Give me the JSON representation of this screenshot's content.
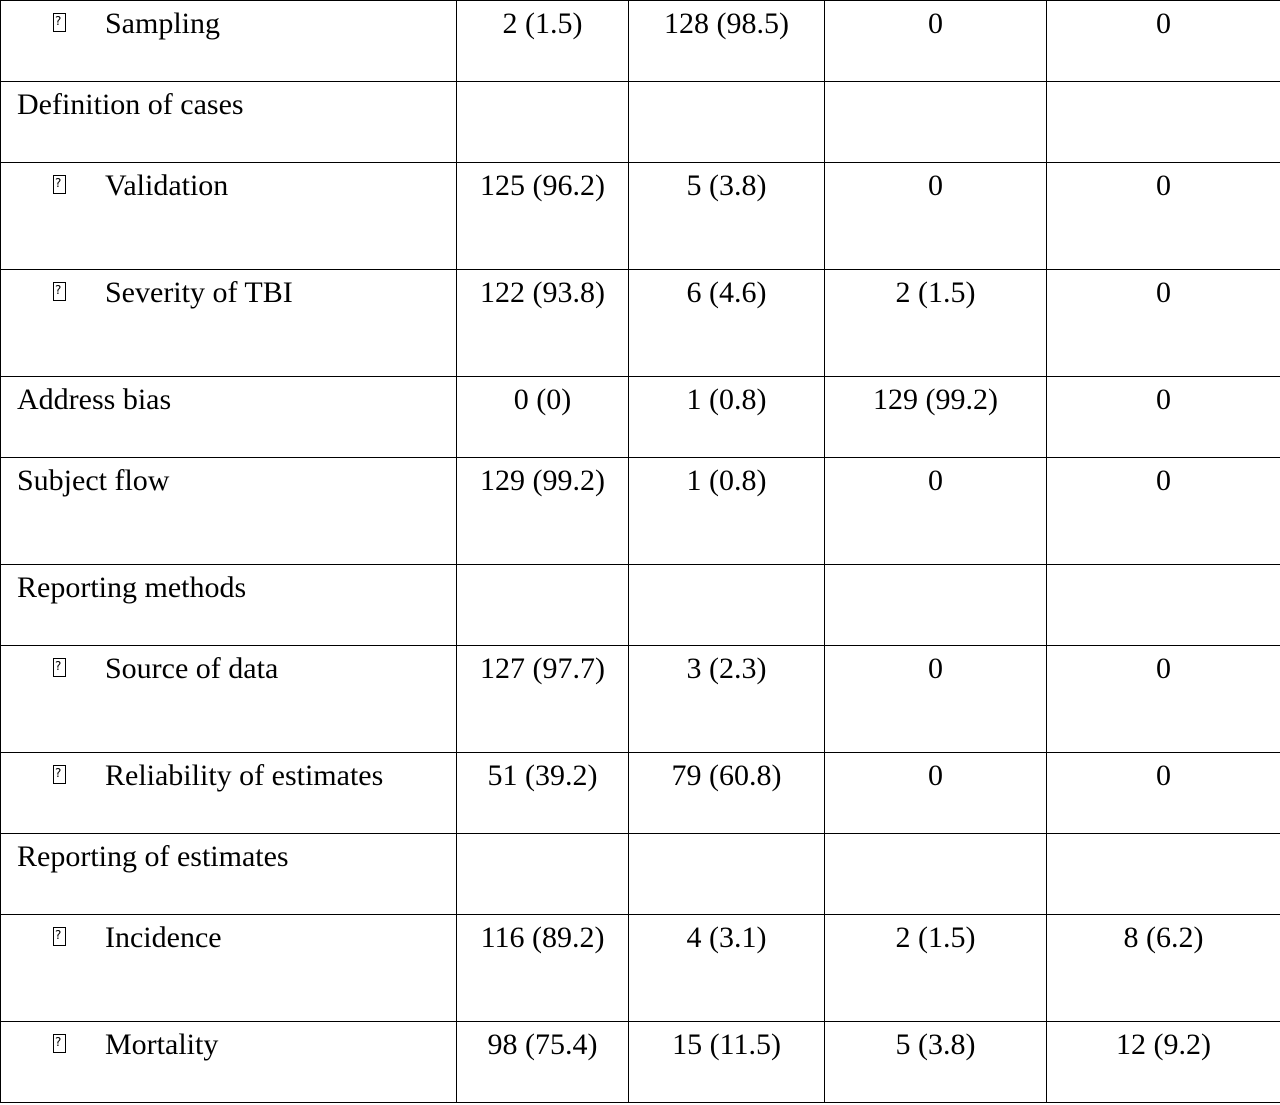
{
  "table": {
    "rows": [
      {
        "label": "Sampling",
        "sub": true,
        "cells": [
          "2 (1.5)",
          "128 (98.5)",
          "0",
          "0"
        ],
        "tall": false
      },
      {
        "label": "Definition of cases",
        "sub": false,
        "cells": [
          "",
          "",
          "",
          ""
        ],
        "tall": false
      },
      {
        "label": "Validation",
        "sub": true,
        "cells": [
          "125 (96.2)",
          "5 (3.8)",
          "0",
          "0"
        ],
        "tall": true
      },
      {
        "label": "Severity of TBI",
        "sub": true,
        "cells": [
          "122 (93.8)",
          "6 (4.6)",
          "2 (1.5)",
          "0"
        ],
        "tall": true
      },
      {
        "label": "Address bias",
        "sub": false,
        "cells": [
          "0 (0)",
          "1 (0.8)",
          "129 (99.2)",
          "0"
        ],
        "tall": false
      },
      {
        "label": "Subject flow",
        "sub": false,
        "cells": [
          "129 (99.2)",
          "1 (0.8)",
          "0",
          "0"
        ],
        "tall": true
      },
      {
        "label": "Reporting methods",
        "sub": false,
        "cells": [
          "",
          "",
          "",
          ""
        ],
        "tall": false
      },
      {
        "label": "Source of data",
        "sub": true,
        "cells": [
          "127 (97.7)",
          "3 (2.3)",
          "0",
          "0"
        ],
        "tall": true
      },
      {
        "label": "Reliability of estimates",
        "sub": true,
        "cells": [
          "51 (39.2)",
          "79 (60.8)",
          "0",
          "0"
        ],
        "tall": false
      },
      {
        "label": "Reporting of estimates",
        "sub": false,
        "cells": [
          "",
          "",
          "",
          ""
        ],
        "tall": false
      },
      {
        "label": "Incidence",
        "sub": true,
        "cells": [
          "116 (89.2)",
          "4 (3.1)",
          "2 (1.5)",
          "8 (6.2)"
        ],
        "tall": true
      },
      {
        "label": "Mortality",
        "sub": true,
        "cells": [
          "98 (75.4)",
          "15 (11.5)",
          "5 (3.8)",
          "12 (9.2)"
        ],
        "tall": false
      }
    ]
  },
  "icons": {
    "bullet": "missing-glyph-box-icon"
  }
}
